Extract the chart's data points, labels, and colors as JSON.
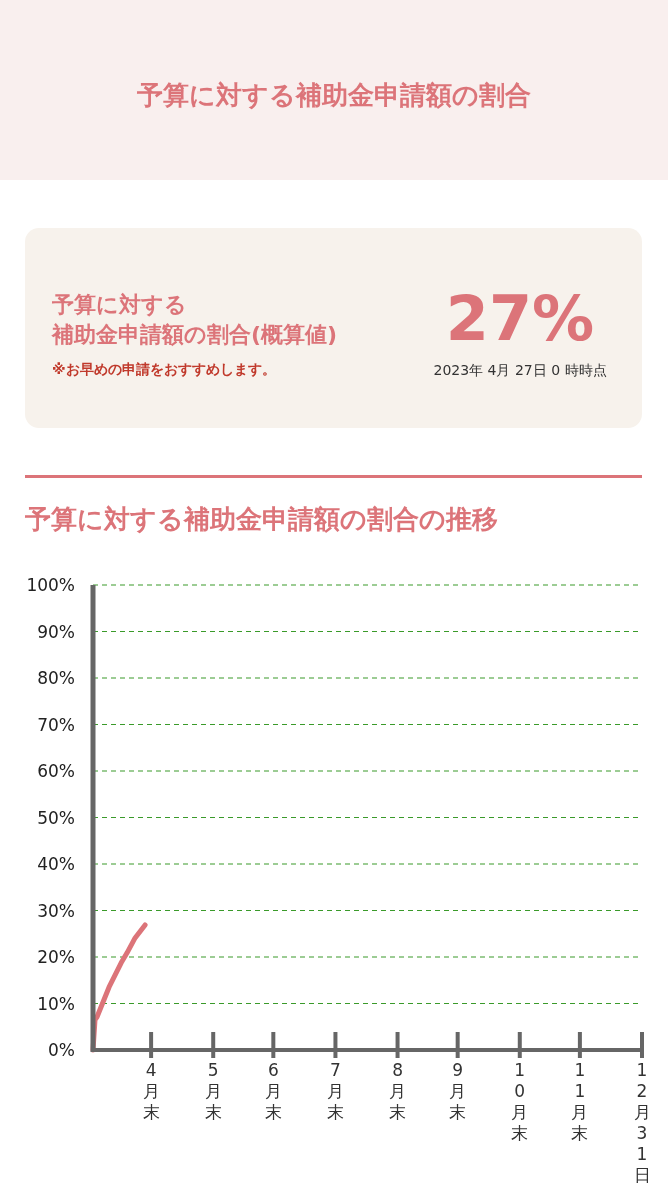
{
  "chart_data": [
    {
      "type": "other",
      "title": "予算に対する補助金申請額の割合",
      "annotations": [
        "予算に対する",
        "補助金申請額の割合(概算値)",
        "※お早めの申請をおすすめします。",
        "27%",
        "2023年 4月 27日 0 時時点"
      ]
    },
    {
      "type": "line",
      "title": "予算に対する補助金申請額の割合の推移",
      "series": [
        {
          "color": "#dc7479",
          "x": [
            "2023-04-01",
            "2023-04-02",
            "2023-04-03",
            "2023-04-09",
            "2023-04-15",
            "2023-04-18",
            "2023-04-22",
            "2023-04-27"
          ],
          "values": [
            0,
            6.5,
            7.1,
            13.5,
            18.7,
            20.9,
            24.1,
            26.9
          ]
        }
      ],
      "xlim": [
        "2023-04-01",
        "2023-12-31"
      ],
      "xticks": [
        {
          "value": "2023-04-30",
          "label": "4月末"
        },
        {
          "value": "2023-05-31",
          "label": "5月末"
        },
        {
          "value": "2023-06-30",
          "label": "6月末"
        },
        {
          "value": "2023-07-31",
          "label": "7月末"
        },
        {
          "value": "2023-08-31",
          "label": "8月末"
        },
        {
          "value": "2023-09-30",
          "label": "9月末"
        },
        {
          "value": "2023-10-31",
          "label": "10月末"
        },
        {
          "value": "2023-11-30",
          "label": "11月末"
        },
        {
          "value": "2023-12-31",
          "label": "12月31日"
        }
      ],
      "ylim": [
        0,
        100
      ],
      "yticks": [
        {
          "value": 0,
          "label": "0%"
        },
        {
          "value": 10,
          "label": "10%"
        },
        {
          "value": 20,
          "label": "20%"
        },
        {
          "value": 30,
          "label": "30%"
        },
        {
          "value": 40,
          "label": "40%"
        },
        {
          "value": 50,
          "label": "50%"
        },
        {
          "value": 60,
          "label": "60%"
        },
        {
          "value": 70,
          "label": "70%"
        },
        {
          "value": 80,
          "label": "80%"
        },
        {
          "value": 90,
          "label": "90%"
        },
        {
          "value": 100,
          "label": "100%"
        }
      ],
      "grid": "y",
      "marker": "none",
      "line_style": "solid"
    }
  ]
}
